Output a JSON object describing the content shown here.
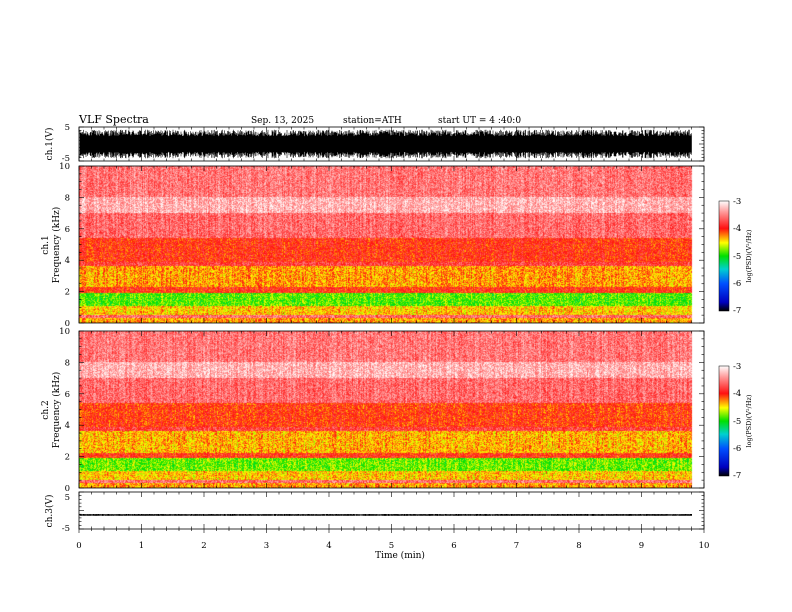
{
  "header": {
    "title": "VLF  Spectra",
    "date": "Sep. 13, 2025",
    "station": "station=ATH",
    "start_ut": "start  UT  =   4  :40:0"
  },
  "chart_data": [
    {
      "type": "line",
      "name": "ch1-waveform",
      "ylabel": "ch.1(V)",
      "ylim": [
        -5,
        5
      ],
      "yticks": [
        "5",
        "-5"
      ],
      "xlim": [
        0,
        10
      ],
      "data_end_min": 9.8,
      "amplitude_v": 4.2
    },
    {
      "type": "heatmap",
      "name": "ch1-spectrogram",
      "ylabel_line1": "ch.1",
      "ylabel_line2": "Frequency  (kHz)",
      "ylim": [
        0,
        10
      ],
      "yticks": [
        "0",
        "2",
        "4",
        "6",
        "8",
        "10"
      ],
      "xlim": [
        0,
        10
      ],
      "data_end_min": 9.8,
      "bands": [
        {
          "f": [
            0.0,
            0.3
          ],
          "level": -4.3
        },
        {
          "f": [
            0.3,
            0.5
          ],
          "level": -3.6
        },
        {
          "f": [
            0.5,
            1.1
          ],
          "level": -4.4
        },
        {
          "f": [
            1.1,
            1.9
          ],
          "level": -4.85
        },
        {
          "f": [
            1.9,
            2.3
          ],
          "level": -4.0
        },
        {
          "f": [
            2.3,
            3.6
          ],
          "level": -4.3
        },
        {
          "f": [
            3.6,
            3.9
          ],
          "level": -3.8
        },
        {
          "f": [
            3.9,
            5.4
          ],
          "level": -4.0
        },
        {
          "f": [
            5.4,
            7.0
          ],
          "level": -3.6
        },
        {
          "f": [
            7.0,
            8.0
          ],
          "level": -3.3
        },
        {
          "f": [
            8.0,
            10.0
          ],
          "level": -3.55
        }
      ],
      "colorbar": {
        "label": "log(PSD)(V²/Hz)",
        "range": [
          -7,
          -3
        ],
        "ticks": [
          "-3",
          "-4",
          "-5",
          "-6",
          "-7"
        ]
      }
    },
    {
      "type": "heatmap",
      "name": "ch2-spectrogram",
      "ylabel_line1": "ch.2",
      "ylabel_line2": "Frequency  (kHz)",
      "ylim": [
        0,
        10
      ],
      "yticks": [
        "0",
        "2",
        "4",
        "6",
        "8",
        "10"
      ],
      "xlim": [
        0,
        10
      ],
      "data_end_min": 9.8,
      "bands": [
        {
          "f": [
            0.0,
            0.3
          ],
          "level": -4.3
        },
        {
          "f": [
            0.3,
            0.5
          ],
          "level": -3.6
        },
        {
          "f": [
            0.5,
            1.1
          ],
          "level": -4.4
        },
        {
          "f": [
            1.1,
            1.9
          ],
          "level": -4.8
        },
        {
          "f": [
            1.9,
            2.2
          ],
          "level": -4.0
        },
        {
          "f": [
            2.2,
            3.6
          ],
          "level": -4.35
        },
        {
          "f": [
            3.6,
            3.9
          ],
          "level": -3.8
        },
        {
          "f": [
            3.9,
            5.4
          ],
          "level": -4.05
        },
        {
          "f": [
            5.4,
            7.0
          ],
          "level": -3.6
        },
        {
          "f": [
            7.0,
            8.0
          ],
          "level": -3.3
        },
        {
          "f": [
            8.0,
            10.0
          ],
          "level": -3.55
        }
      ],
      "colorbar": {
        "label": "log(PSD)(V²/Hz)",
        "range": [
          -7,
          -3
        ],
        "ticks": [
          "-3",
          "-4",
          "-5",
          "-6",
          "-7"
        ]
      }
    },
    {
      "type": "line",
      "name": "ch3-waveform",
      "ylabel": "ch.3(V)",
      "ylim": [
        -5,
        5
      ],
      "yticks": [
        "5",
        "-5"
      ],
      "xlim": [
        0,
        10
      ],
      "data_end_min": 9.8,
      "offset_v": -1.2,
      "amplitude_v": 0.25
    }
  ],
  "x_axis": {
    "label": "Time  (min)",
    "ticks": [
      "0",
      "1",
      "2",
      "3",
      "4",
      "5",
      "6",
      "7",
      "8",
      "9",
      "10"
    ]
  },
  "colors": {
    "background": "#ffffff",
    "ink": "#000000"
  }
}
